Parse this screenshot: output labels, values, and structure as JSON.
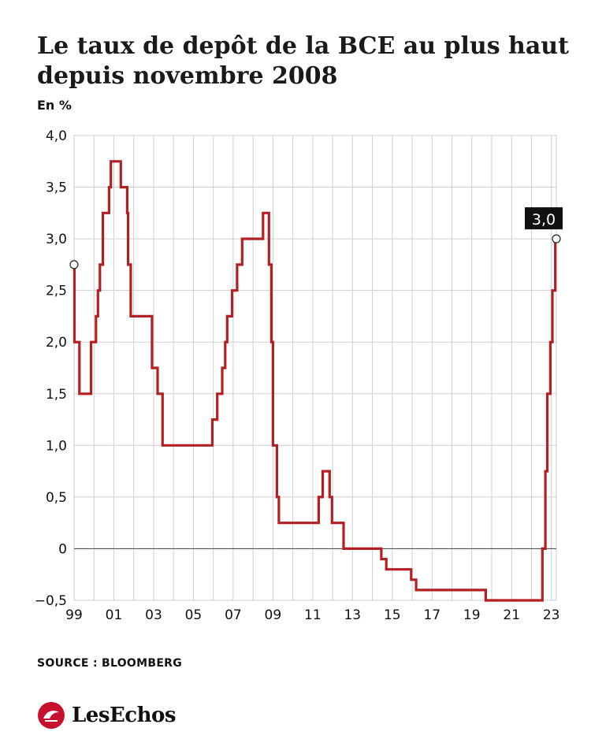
{
  "header": {
    "title": "Le taux de depôt de la BCE au plus haut depuis novembre 2008",
    "unit": "En %"
  },
  "footer": {
    "source": "SOURCE : BLOOMBERG",
    "brand": "LesEchos"
  },
  "colors": {
    "line": "#b41f24",
    "grid": "#cfcfcf",
    "text": "#111111",
    "logo": "#c8102e"
  },
  "chart_data": {
    "type": "line",
    "title": "Le taux de depôt de la BCE au plus haut depuis novembre 2008",
    "ylabel": "En %",
    "xlabel": "",
    "step": true,
    "grid": true,
    "xlim": [
      1999.0,
      2023.25
    ],
    "ylim": [
      -0.5,
      4.0
    ],
    "x_ticks": [
      {
        "v": 1999,
        "label": "99"
      },
      {
        "v": 2001,
        "label": "01"
      },
      {
        "v": 2003,
        "label": "03"
      },
      {
        "v": 2005,
        "label": "05"
      },
      {
        "v": 2007,
        "label": "07"
      },
      {
        "v": 2009,
        "label": "09"
      },
      {
        "v": 2011,
        "label": "11"
      },
      {
        "v": 2013,
        "label": "13"
      },
      {
        "v": 2015,
        "label": "15"
      },
      {
        "v": 2017,
        "label": "17"
      },
      {
        "v": 2019,
        "label": "19"
      },
      {
        "v": 2021,
        "label": "21"
      },
      {
        "v": 2023,
        "label": "23"
      }
    ],
    "y_ticks": [
      {
        "v": 4.0,
        "label": "4,0"
      },
      {
        "v": 3.5,
        "label": "3,5"
      },
      {
        "v": 3.0,
        "label": "3,0"
      },
      {
        "v": 2.5,
        "label": "2,5"
      },
      {
        "v": 2.0,
        "label": "2,0"
      },
      {
        "v": 1.5,
        "label": "1,5"
      },
      {
        "v": 1.0,
        "label": "1,0"
      },
      {
        "v": 0.5,
        "label": "0,5"
      },
      {
        "v": 0.0,
        "label": "0"
      },
      {
        "v": -0.5,
        "label": "−0,5"
      }
    ],
    "series": [
      {
        "points": [
          [
            1999.0,
            2.75
          ],
          [
            1999.02,
            2.0
          ],
          [
            1999.27,
            1.5
          ],
          [
            1999.85,
            2.0
          ],
          [
            2000.1,
            2.25
          ],
          [
            2000.2,
            2.5
          ],
          [
            2000.3,
            2.75
          ],
          [
            2000.45,
            3.25
          ],
          [
            2000.76,
            3.5
          ],
          [
            2000.85,
            3.75
          ],
          [
            2001.35,
            3.5
          ],
          [
            2001.67,
            3.25
          ],
          [
            2001.72,
            2.75
          ],
          [
            2001.85,
            2.25
          ],
          [
            2002.92,
            1.75
          ],
          [
            2003.2,
            1.5
          ],
          [
            2003.45,
            1.0
          ],
          [
            2005.95,
            1.25
          ],
          [
            2006.2,
            1.5
          ],
          [
            2006.45,
            1.75
          ],
          [
            2006.6,
            2.0
          ],
          [
            2006.7,
            2.25
          ],
          [
            2006.95,
            2.5
          ],
          [
            2007.2,
            2.75
          ],
          [
            2007.45,
            3.0
          ],
          [
            2008.5,
            3.25
          ],
          [
            2008.8,
            2.75
          ],
          [
            2008.92,
            2.0
          ],
          [
            2009.0,
            1.0
          ],
          [
            2009.2,
            0.5
          ],
          [
            2009.3,
            0.25
          ],
          [
            2011.3,
            0.5
          ],
          [
            2011.5,
            0.75
          ],
          [
            2011.85,
            0.5
          ],
          [
            2011.97,
            0.25
          ],
          [
            2012.55,
            0.0
          ],
          [
            2014.45,
            -0.1
          ],
          [
            2014.7,
            -0.2
          ],
          [
            2015.95,
            -0.3
          ],
          [
            2016.2,
            -0.4
          ],
          [
            2019.7,
            -0.5
          ],
          [
            2022.55,
            0.0
          ],
          [
            2022.7,
            0.75
          ],
          [
            2022.8,
            1.5
          ],
          [
            2022.95,
            2.0
          ],
          [
            2023.05,
            2.5
          ],
          [
            2023.2,
            3.0
          ],
          [
            2023.25,
            3.0
          ]
        ]
      }
    ],
    "annotations": [
      {
        "label": "3,0",
        "x": 2023.25,
        "y": 3.0
      }
    ],
    "markers": [
      {
        "x": 1999.0,
        "y": 2.75
      },
      {
        "x": 2023.25,
        "y": 3.0
      }
    ]
  }
}
